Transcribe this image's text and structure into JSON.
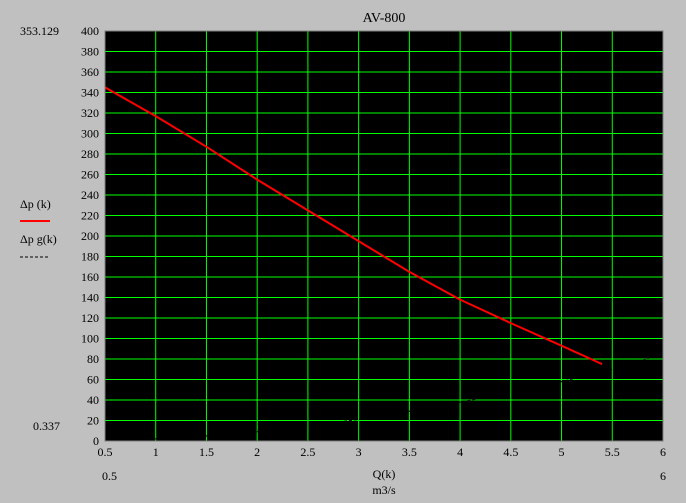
{
  "chart_data": {
    "type": "line",
    "title": "AV-800",
    "xlabel": "Q(k)",
    "xunit": "m3/s",
    "x_range_labels": [
      "0.5",
      "6"
    ],
    "y_range_labels": [
      "353.129",
      "0.337"
    ],
    "xlim": [
      0.5,
      6
    ],
    "ylim": [
      0,
      400
    ],
    "x_ticks": [
      0.5,
      1,
      1.5,
      2,
      2.5,
      3,
      3.5,
      4,
      4.5,
      5,
      5.5,
      6
    ],
    "x_tick_labels": [
      "0.5",
      "1",
      "1.5",
      "2",
      "2.5",
      "3",
      "3.5",
      "4",
      "4.5",
      "5",
      "5.5",
      "6"
    ],
    "y_ticks": [
      0,
      20,
      40,
      60,
      80,
      100,
      120,
      140,
      160,
      180,
      200,
      220,
      240,
      260,
      280,
      300,
      320,
      340,
      360,
      380,
      400
    ],
    "y_tick_labels": [
      "0",
      "20",
      "40",
      "60",
      "80",
      "100",
      "120",
      "140",
      "160",
      "180",
      "200",
      "220",
      "240",
      "260",
      "280",
      "300",
      "320",
      "340",
      "360",
      "380",
      "400"
    ],
    "grid": true,
    "legend_position": "left",
    "series": [
      {
        "name": "Δp  (k)",
        "color": "#ff0000",
        "style": "solid",
        "x": [
          0.5,
          1,
          1.5,
          2,
          2.5,
          3,
          3.5,
          4,
          4.5,
          5,
          5.4
        ],
        "y": [
          345,
          317,
          287,
          255,
          225,
          195,
          165,
          138,
          115,
          93,
          75
        ]
      },
      {
        "name": "Δp g(k)",
        "color": "#000000",
        "style": "dashed",
        "x": [
          0.5,
          1,
          1.5,
          2,
          2.5,
          3,
          3.5,
          4,
          4.5,
          5,
          5.5,
          6
        ],
        "y": [
          0.337,
          2,
          5,
          9,
          15,
          21,
          29,
          38,
          47,
          58,
          70,
          85
        ]
      }
    ]
  }
}
